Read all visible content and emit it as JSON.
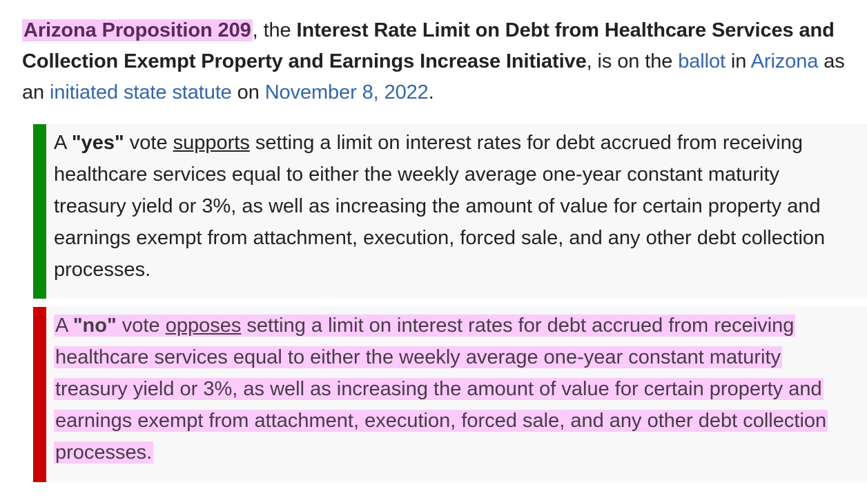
{
  "intro": {
    "title_link": "Arizona Proposition 209",
    "t1": ", the ",
    "bold_name": "Interest Rate Limit on Debt from Healthcare Services and Collection Exempt Property and Earnings Increase Initiative",
    "t2": ", is on the ",
    "link_ballot": "ballot",
    "t3": " in ",
    "link_state": "Arizona",
    "t4": " as an ",
    "link_statute": "initiated state statute",
    "t5": " on ",
    "link_date": "November 8, 2022",
    "t6": "."
  },
  "yes_box": {
    "a": "A ",
    "vote": "\"yes\"",
    "mid": " vote ",
    "verb": "supports",
    "body": " setting a limit on interest rates for debt accrued from receiving healthcare services equal to either the weekly average one-year constant maturity treasury yield or 3%, as well as increasing the amount of value for certain property and earnings exempt from attachment, execution, forced sale, and any other debt collection processes."
  },
  "no_box": {
    "a": "A ",
    "vote": "\"no\"",
    "mid": " vote ",
    "verb": "opposes",
    "body": " setting a limit on interest rates for debt accrued from receiving healthcare services equal to either the weekly average one-year constant maturity treasury yield or 3%, as well as increasing the amount of value for certain property and earnings exempt from attachment, execution, forced sale, and any other debt collection processes."
  },
  "colors": {
    "yes_bar": "#0a8a0a",
    "no_bar": "#cc0000",
    "highlight": "#f8c8f8",
    "link": "#3366aa"
  }
}
